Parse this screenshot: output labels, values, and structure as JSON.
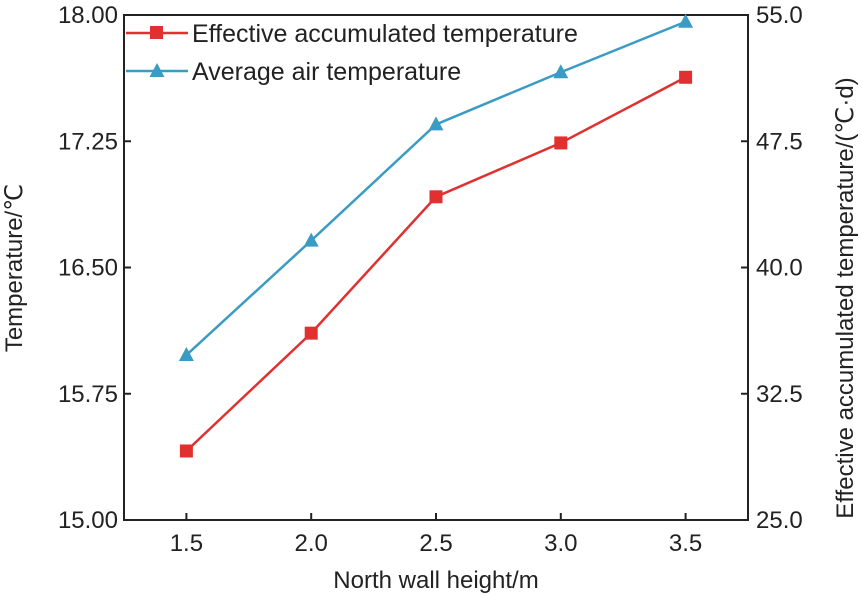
{
  "chart_data": {
    "type": "line",
    "title": "",
    "xlabel": "North wall height/m",
    "ylabel_left": "Temperature/℃",
    "ylabel_right": "Effective accumulated temperature/(℃·d)",
    "x": [
      1.5,
      2.0,
      2.5,
      3.0,
      3.5
    ],
    "x_tick_labels": [
      "1.5",
      "2.0",
      "2.5",
      "3.0",
      "3.5"
    ],
    "xlim": [
      1.25,
      3.75
    ],
    "ylim_left": [
      15.0,
      18.0
    ],
    "ylim_right": [
      25.0,
      55.0
    ],
    "y_left_ticks": [
      15.0,
      15.75,
      16.5,
      17.25,
      18.0
    ],
    "y_left_tick_labels": [
      "15.00",
      "15.75",
      "16.50",
      "17.25",
      "18.00"
    ],
    "y_right_ticks": [
      25.0,
      32.5,
      40.0,
      47.5,
      55.0
    ],
    "y_right_tick_labels": [
      "25.0",
      "32.5",
      "40.0",
      "47.5",
      "55.0"
    ],
    "grid": false,
    "legend_position": "top-left",
    "series": [
      {
        "name": "Effective accumulated temperature",
        "axis": "right",
        "marker": "square",
        "color": "#e03030",
        "values": [
          29.1,
          36.1,
          44.2,
          47.4,
          51.3
        ]
      },
      {
        "name": "Average air temperature",
        "axis": "left",
        "marker": "triangle",
        "color": "#3a9bc4",
        "values": [
          15.98,
          16.66,
          17.35,
          17.66,
          17.96
        ]
      }
    ]
  }
}
